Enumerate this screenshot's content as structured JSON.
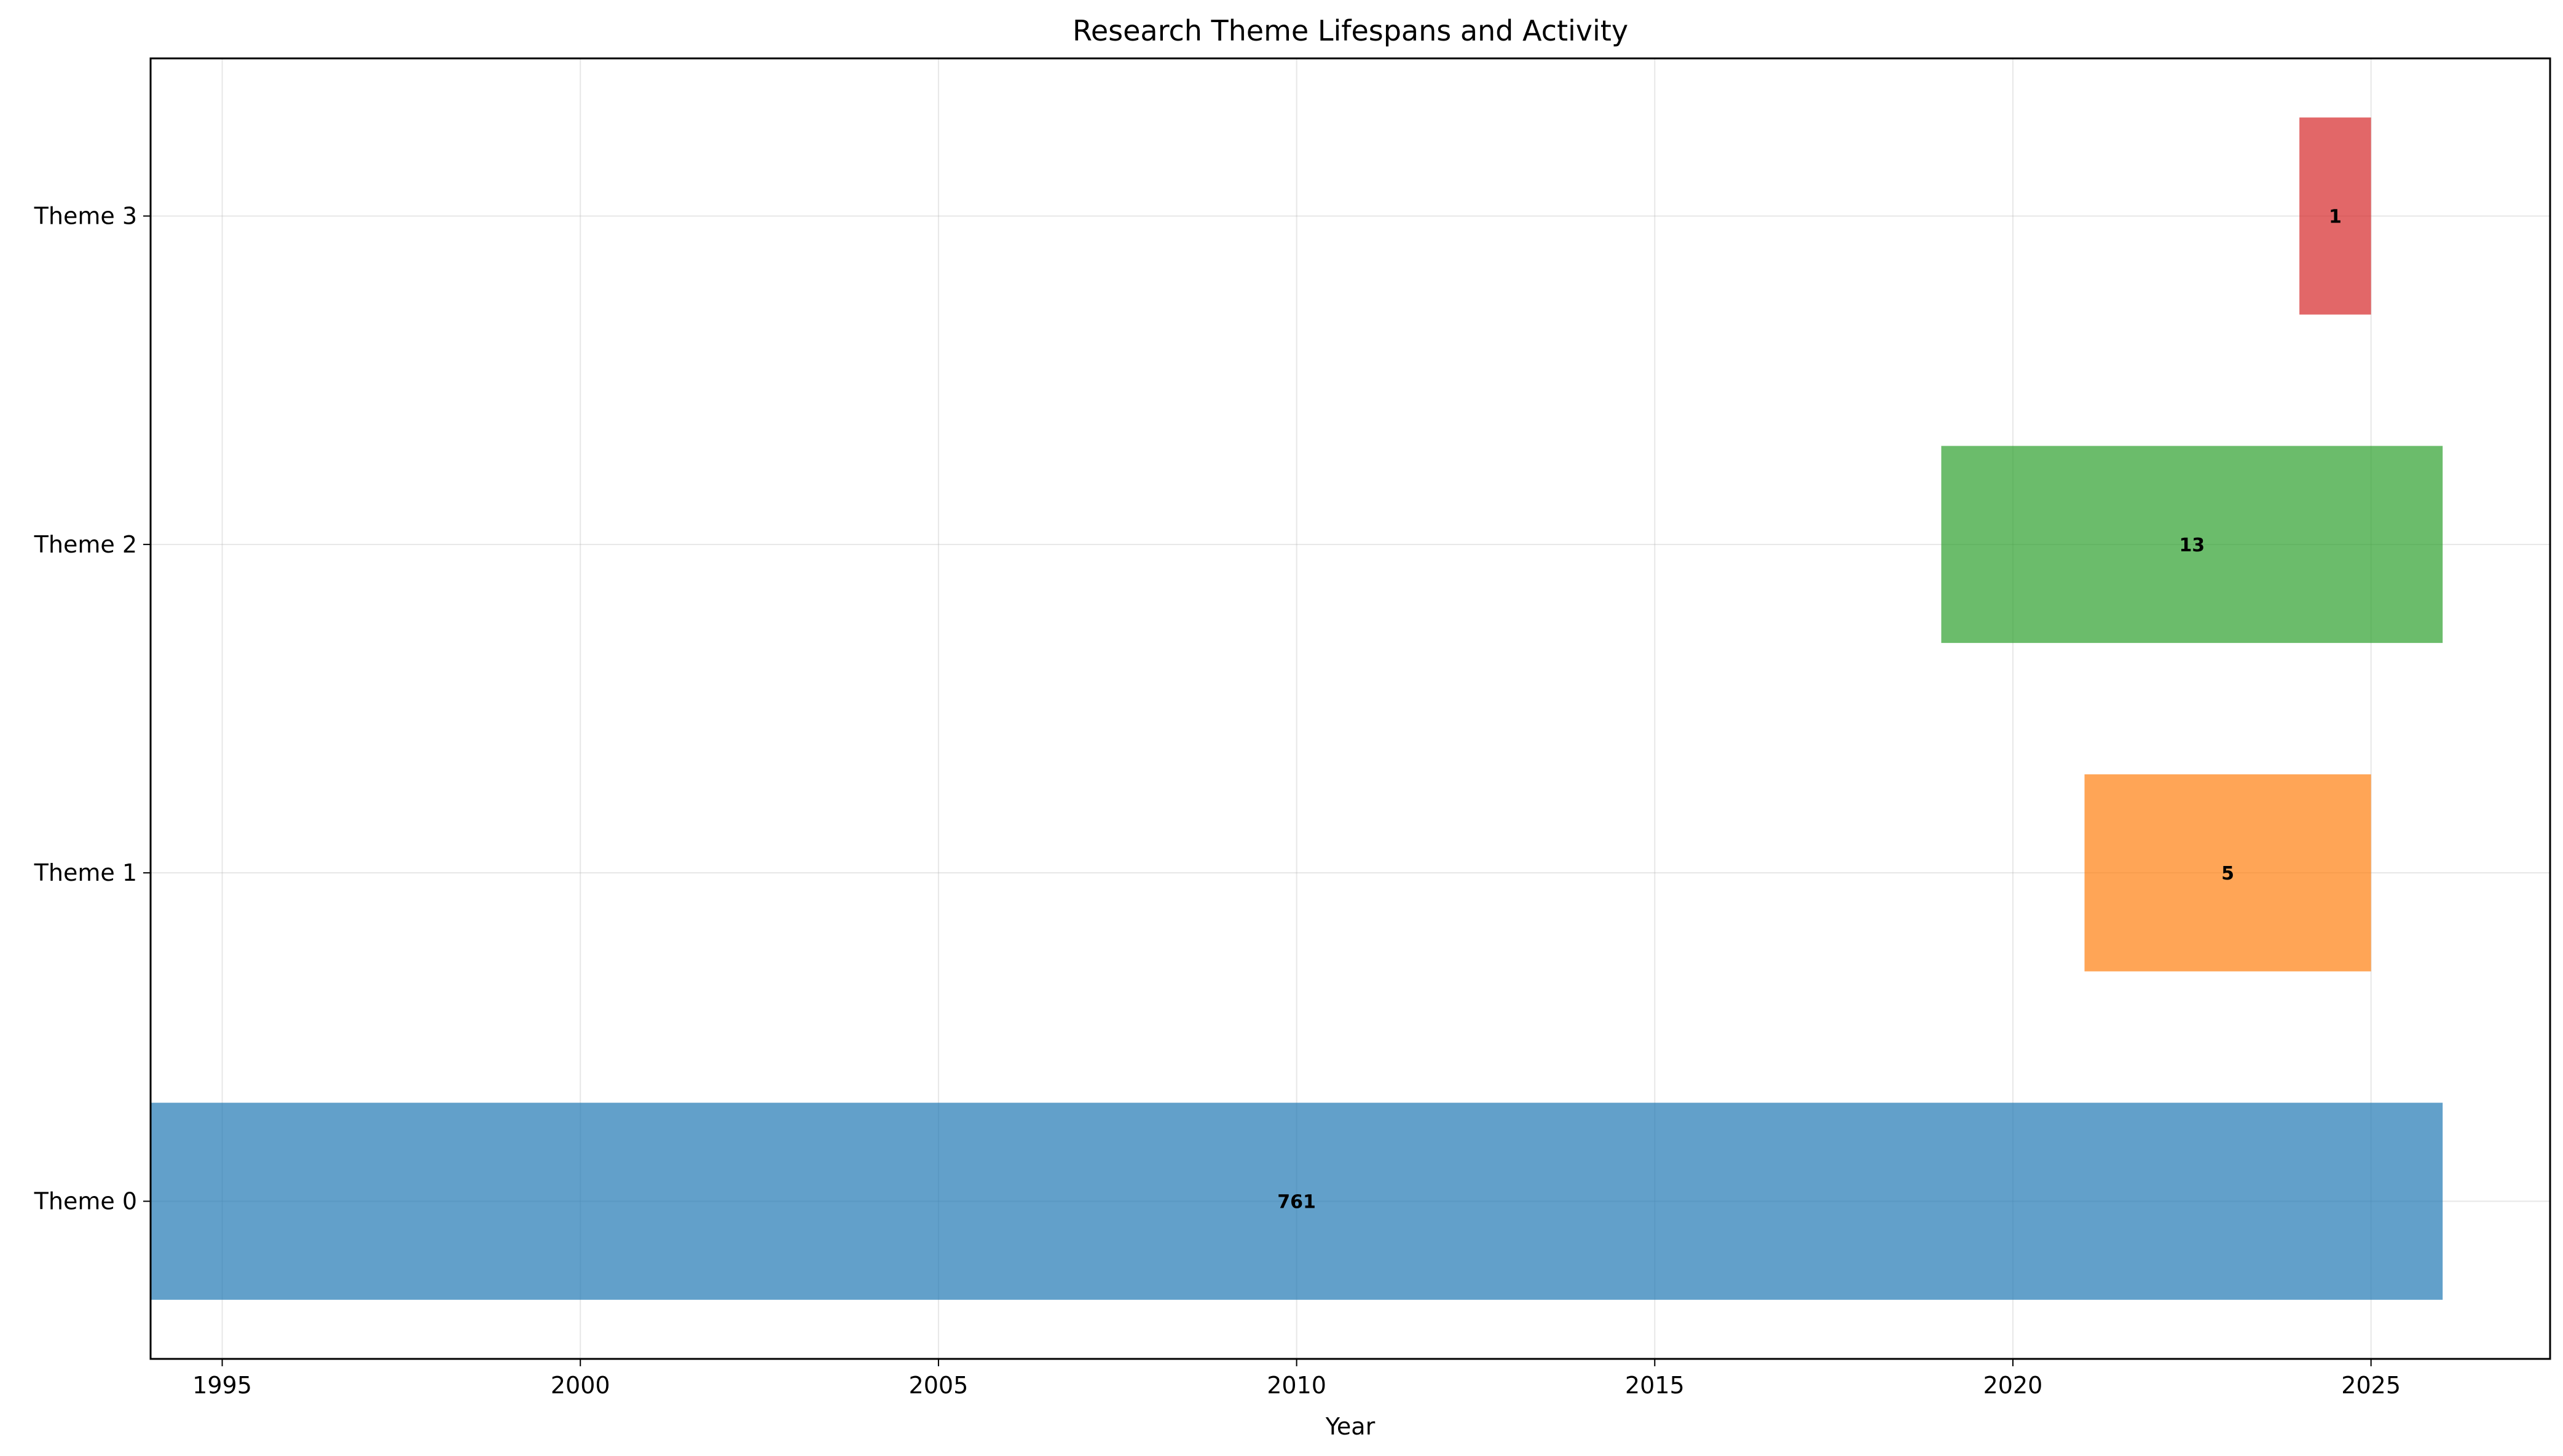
{
  "chart_data": {
    "type": "gantt",
    "title": "Research Theme Lifespans and Activity",
    "xlabel": "Year",
    "ylabel": "",
    "xlim": [
      1994,
      2027.5
    ],
    "x_ticks": [
      1995,
      2000,
      2005,
      2010,
      2015,
      2020,
      2025
    ],
    "grid": true,
    "categories": [
      "Theme 0",
      "Theme 1",
      "Theme 2",
      "Theme 3"
    ],
    "bars": [
      {
        "category": "Theme 0",
        "start": 1994,
        "end": 2026,
        "value": 761,
        "label": "761",
        "color": "#1f77b4"
      },
      {
        "category": "Theme 1",
        "start": 2021,
        "end": 2025,
        "value": 5,
        "label": "5",
        "color": "#ff7f0e"
      },
      {
        "category": "Theme 2",
        "start": 2019,
        "end": 2026,
        "value": 13,
        "label": "13",
        "color": "#2ca02c"
      },
      {
        "category": "Theme 3",
        "start": 2024,
        "end": 2025,
        "value": 1,
        "label": "1",
        "color": "#d62728"
      }
    ]
  }
}
